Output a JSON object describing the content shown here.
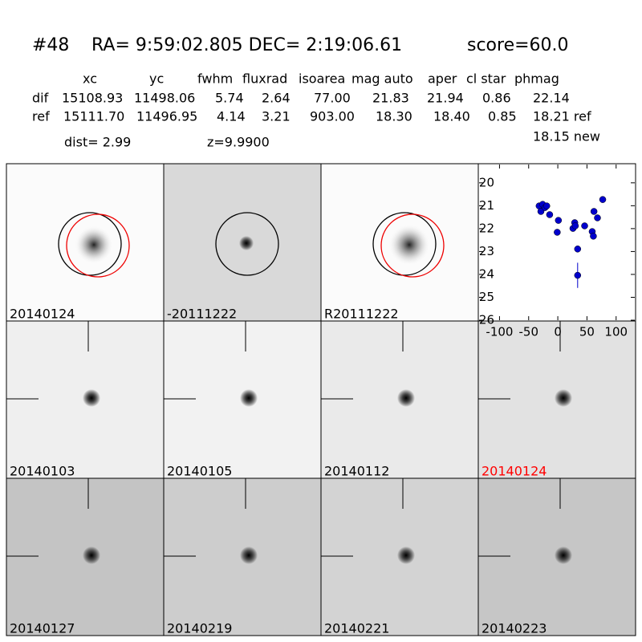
{
  "header": {
    "id": "#48",
    "coords": "RA= 9:59:02.805 DEC= 2:19:06.61",
    "score": "score=60.0"
  },
  "table": {
    "columns": [
      "xc",
      "yc",
      "fwhm",
      "fluxrad",
      "isoarea",
      "mag auto",
      "aper",
      "cl star",
      "phmag"
    ],
    "rows": [
      [
        "dif",
        "15108.93",
        "11498.06",
        "5.74",
        "2.64",
        "77.00",
        "21.83",
        "21.94",
        "0.86",
        "22.14"
      ],
      [
        "ref",
        "15111.70",
        "11496.95",
        "4.14",
        "3.21",
        "903.00",
        "18.30",
        "18.40",
        "0.85",
        "18.21 ref"
      ]
    ],
    "extra": "18.15 new"
  },
  "dist": "dist=  2.99",
  "z": "z=9.9900",
  "panels": [
    {
      "label": "20140124"
    },
    {
      "label": "-20111222"
    },
    {
      "label": "R20111222"
    },
    {
      "label": "20140103"
    },
    {
      "label": "20140105"
    },
    {
      "label": "20140112"
    },
    {
      "label": "20140124",
      "label_color": "#ff0000"
    },
    {
      "label": "20140127"
    },
    {
      "label": "20140219"
    },
    {
      "label": "20140221"
    },
    {
      "label": "20140223"
    }
  ],
  "chart_data": {
    "type": "scatter",
    "series": [
      {
        "color": "#0000cc",
        "x": [
          -32,
          -29,
          -26,
          -22,
          -19,
          -14,
          -1,
          1,
          26,
          29,
          30,
          34,
          34,
          46,
          59,
          61,
          62,
          68,
          77
        ],
        "values": [
          21.01,
          21.25,
          20.94,
          21.08,
          21.01,
          21.39,
          22.16,
          21.64,
          21.99,
          21.74,
          21.88,
          22.89,
          24.04,
          21.88,
          22.13,
          22.33,
          21.25,
          21.53,
          20.73
        ],
        "errors": [
          null,
          null,
          null,
          null,
          null,
          null,
          null,
          null,
          null,
          null,
          null,
          0.15,
          0.55,
          null,
          null,
          null,
          null,
          null,
          null
        ]
      }
    ],
    "xlim": [
      -135,
      132
    ],
    "ylim": [
      26,
      19.2
    ],
    "xticks": [
      -100,
      -50,
      0,
      50,
      100
    ],
    "yticks": [
      20,
      21,
      22,
      23,
      24,
      25,
      26
    ]
  }
}
